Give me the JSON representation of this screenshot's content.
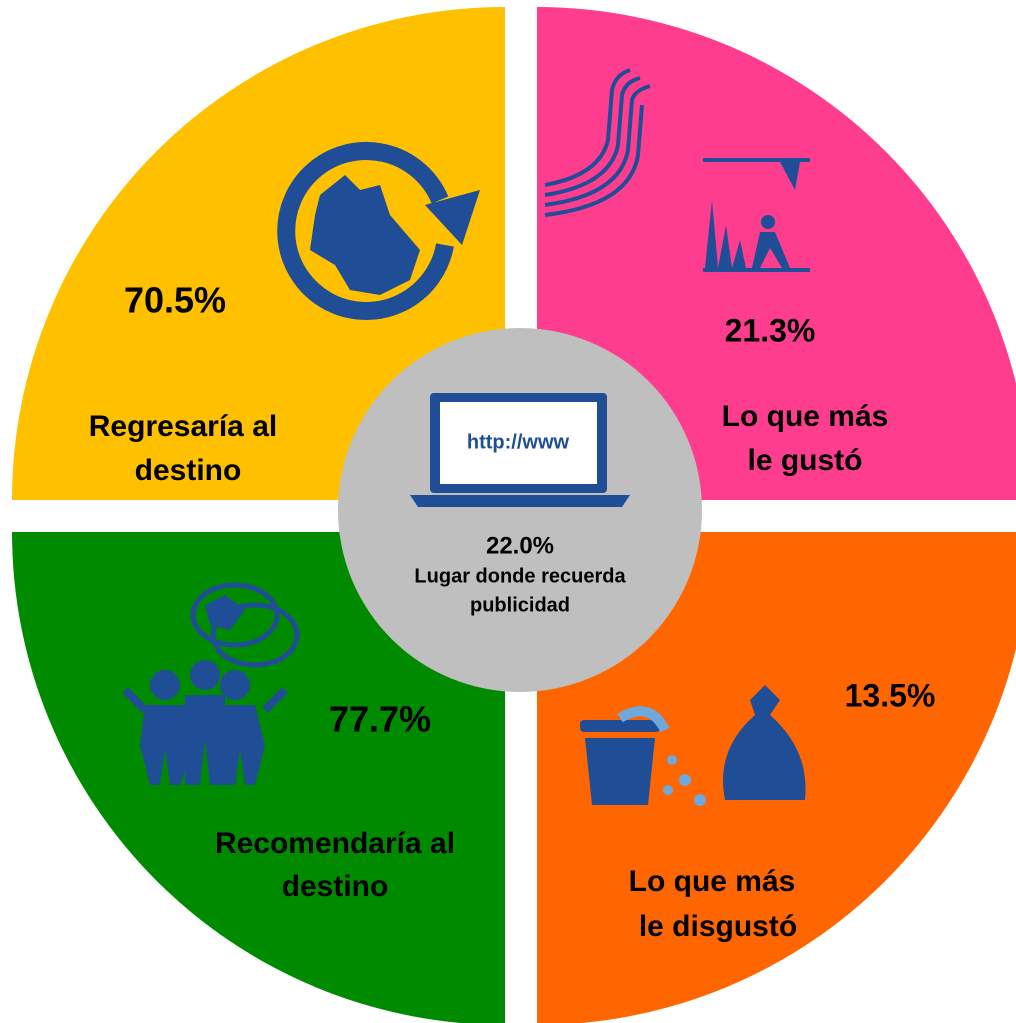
{
  "center": {
    "value": "22.0%",
    "label": [
      "Lugar donde recuerda",
      "publicidad"
    ],
    "icon_text": "http://www"
  },
  "quadrants": [
    {
      "value": "70.5%",
      "label": [
        "Regresaría  al",
        "destino"
      ]
    },
    {
      "value": "21.3%",
      "label": [
        "Lo que más",
        "le gustó"
      ]
    },
    {
      "value": "77.7%",
      "label": [
        "Recomendaría al",
        "destino"
      ]
    },
    {
      "value": "13.5%",
      "label": [
        "Lo que más",
        "le disgustó"
      ]
    }
  ]
}
